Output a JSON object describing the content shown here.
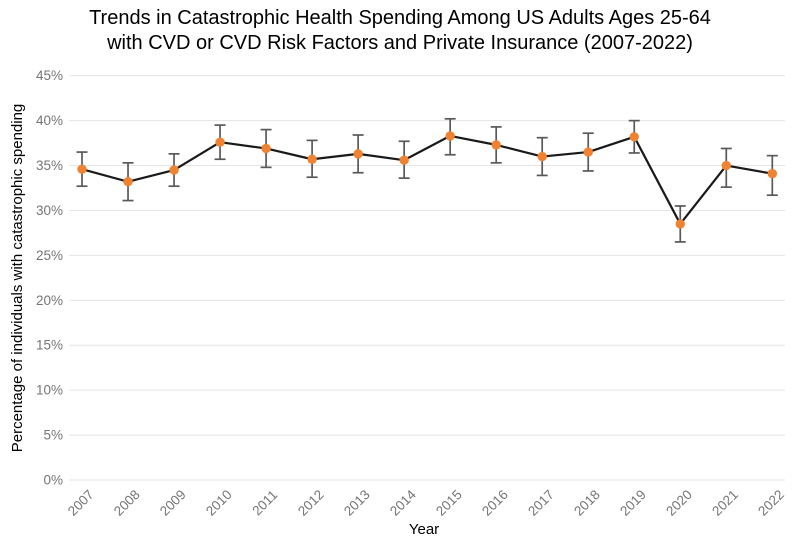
{
  "title_lines": [
    "Trends in Catastrophic Health Spending Among US Adults Ages 25-64",
    "with CVD or CVD Risk Factors and Private Insurance (2007-2022)"
  ],
  "chart_data": {
    "type": "line",
    "title": "Trends in Catastrophic Health Spending Among US Adults Ages 25-64 with CVD or CVD Risk Factors and Private Insurance (2007-2022)",
    "xlabel": "Year",
    "ylabel": "Percentage of individuals with catastrophic spending",
    "x": [
      2007,
      2008,
      2009,
      2010,
      2011,
      2012,
      2013,
      2014,
      2015,
      2016,
      2017,
      2018,
      2019,
      2020,
      2021,
      2022
    ],
    "series": [
      {
        "name": "Percentage of individuals with catastrophic spending",
        "values": [
          34.6,
          33.2,
          34.5,
          37.6,
          36.9,
          35.7,
          36.3,
          35.6,
          38.3,
          37.3,
          36.0,
          36.5,
          38.2,
          28.5,
          35.0,
          34.1
        ],
        "error_low": [
          32.7,
          31.1,
          32.7,
          35.7,
          34.8,
          33.7,
          34.2,
          33.6,
          36.2,
          35.3,
          33.9,
          34.4,
          36.4,
          26.5,
          32.6,
          31.7
        ],
        "error_high": [
          36.5,
          35.3,
          36.3,
          39.5,
          39.0,
          37.8,
          38.4,
          37.7,
          40.2,
          39.3,
          38.1,
          38.6,
          40.0,
          30.5,
          36.9,
          36.1
        ]
      }
    ],
    "ylim": [
      0,
      45
    ],
    "ytick_step": 5,
    "ytick_suffix": "%",
    "grid": "horizontal-only",
    "legend": "none",
    "marker": "circle",
    "error_bars": true,
    "colors": {
      "line": "#1a1a1a",
      "marker": "#EF8331",
      "error_bar": "#595959",
      "grid": "#e4e4e4",
      "tick_label": "#757575",
      "axis_title": "#000000",
      "title": "#000000",
      "background": "#ffffff"
    }
  }
}
